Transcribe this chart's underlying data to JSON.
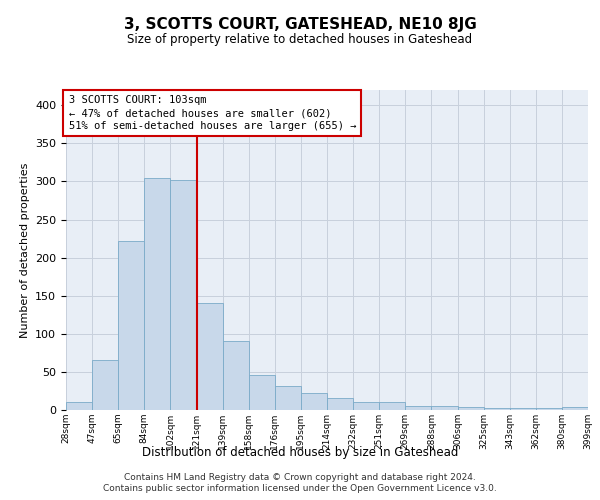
{
  "title": "3, SCOTTS COURT, GATESHEAD, NE10 8JG",
  "subtitle": "Size of property relative to detached houses in Gateshead",
  "xlabel": "Distribution of detached houses by size in Gateshead",
  "ylabel": "Number of detached properties",
  "footer1": "Contains HM Land Registry data © Crown copyright and database right 2024.",
  "footer2": "Contains public sector information licensed under the Open Government Licence v3.0.",
  "annotation_line1": "3 SCOTTS COURT: 103sqm",
  "annotation_line2": "← 47% of detached houses are smaller (602)",
  "annotation_line3": "51% of semi-detached houses are larger (655) →",
  "bar_values": [
    10,
    65,
    222,
    305,
    302,
    140,
    90,
    46,
    32,
    22,
    16,
    11,
    10,
    5,
    5,
    4,
    3,
    2,
    2,
    4
  ],
  "bin_labels": [
    "28sqm",
    "47sqm",
    "65sqm",
    "84sqm",
    "102sqm",
    "121sqm",
    "139sqm",
    "158sqm",
    "176sqm",
    "195sqm",
    "214sqm",
    "232sqm",
    "251sqm",
    "269sqm",
    "288sqm",
    "306sqm",
    "325sqm",
    "343sqm",
    "362sqm",
    "380sqm",
    "399sqm"
  ],
  "bar_color": "#c8d8ea",
  "bar_edge_color": "#7aaac8",
  "grid_color": "#c8d0dc",
  "bg_color": "#e8eef6",
  "vline_color": "#cc0000",
  "annotation_box_color": "#cc0000",
  "ylim": [
    0,
    420
  ],
  "yticks": [
    0,
    50,
    100,
    150,
    200,
    250,
    300,
    350,
    400
  ],
  "property_size_sqm": 103,
  "property_bin_index": 4
}
